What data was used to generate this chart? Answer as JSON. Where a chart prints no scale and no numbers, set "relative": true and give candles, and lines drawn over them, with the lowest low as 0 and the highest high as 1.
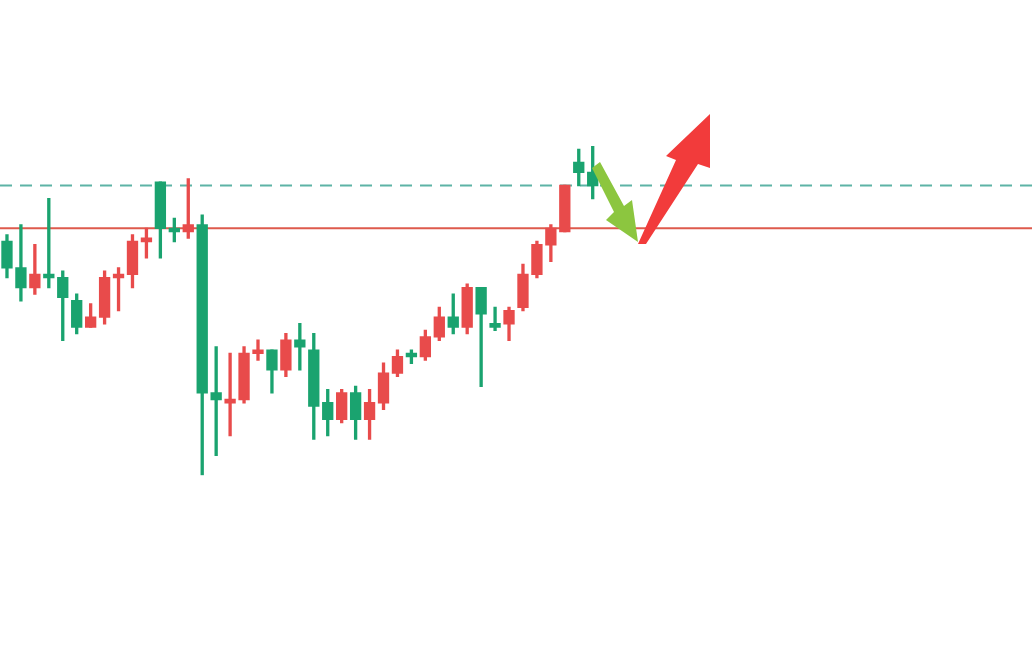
{
  "chart_data": {
    "type": "candlestick",
    "relative": true,
    "legend": false,
    "categories": [
      null,
      null,
      null,
      null,
      null,
      null,
      null,
      null,
      null,
      null,
      null,
      null,
      null,
      null,
      null,
      null,
      null,
      null,
      null,
      null,
      null,
      null,
      null,
      null,
      null,
      null,
      null,
      null,
      null,
      null,
      null,
      null,
      null,
      null,
      null,
      null,
      null,
      null,
      null,
      null,
      null,
      null,
      null,
      null,
      null,
      null,
      null,
      null,
      null,
      null,
      null,
      null,
      null,
      null,
      null,
      null,
      null,
      null,
      null,
      null,
      null,
      null,
      null,
      null,
      null,
      null,
      null,
      null,
      null,
      null,
      null,
      null,
      null,
      null
    ],
    "ohlc": [
      [
        0.71,
        0.73,
        0.6,
        0.63
      ],
      [
        0.63,
        0.76,
        0.53,
        0.57
      ],
      [
        0.57,
        0.7,
        0.55,
        0.61
      ],
      [
        0.61,
        0.84,
        0.57,
        0.6
      ],
      [
        0.6,
        0.62,
        0.41,
        0.54
      ],
      [
        0.53,
        0.55,
        0.43,
        0.45
      ],
      [
        0.45,
        0.52,
        0.45,
        0.48
      ],
      [
        0.48,
        0.62,
        0.46,
        0.6
      ],
      [
        0.6,
        0.63,
        0.5,
        0.61
      ],
      [
        0.61,
        0.73,
        0.57,
        0.71
      ],
      [
        0.71,
        0.75,
        0.66,
        0.72
      ],
      [
        0.89,
        0.89,
        0.66,
        0.75
      ],
      [
        0.75,
        0.78,
        0.71,
        0.74
      ],
      [
        0.74,
        0.9,
        0.72,
        0.76
      ],
      [
        0.76,
        0.79,
        0.0,
        0.25
      ],
      [
        0.25,
        0.39,
        0.06,
        0.23
      ],
      [
        0.22,
        0.37,
        0.12,
        0.23
      ],
      [
        0.23,
        0.39,
        0.22,
        0.37
      ],
      [
        0.37,
        0.41,
        0.35,
        0.38
      ],
      [
        0.38,
        0.38,
        0.25,
        0.32
      ],
      [
        0.32,
        0.43,
        0.3,
        0.41
      ],
      [
        0.41,
        0.46,
        0.32,
        0.39
      ],
      [
        0.38,
        0.43,
        0.11,
        0.21
      ],
      [
        0.22,
        0.26,
        0.12,
        0.17
      ],
      [
        0.17,
        0.26,
        0.16,
        0.25
      ],
      [
        0.25,
        0.27,
        0.11,
        0.17
      ],
      [
        0.17,
        0.26,
        0.11,
        0.22
      ],
      [
        0.22,
        0.34,
        0.2,
        0.31
      ],
      [
        0.31,
        0.38,
        0.3,
        0.36
      ],
      [
        0.37,
        0.38,
        0.34,
        0.36
      ],
      [
        0.36,
        0.44,
        0.35,
        0.42
      ],
      [
        0.42,
        0.51,
        0.41,
        0.48
      ],
      [
        0.48,
        0.55,
        0.43,
        0.45
      ],
      [
        0.45,
        0.58,
        0.43,
        0.57
      ],
      [
        0.57,
        0.57,
        0.27,
        0.49
      ],
      [
        0.46,
        0.51,
        0.44,
        0.45
      ],
      [
        0.46,
        0.51,
        0.41,
        0.5
      ],
      [
        0.51,
        0.64,
        0.5,
        0.61
      ],
      [
        0.61,
        0.71,
        0.6,
        0.7
      ],
      [
        0.7,
        0.76,
        0.65,
        0.75
      ],
      [
        0.74,
        0.88,
        0.74,
        0.88
      ],
      [
        0.95,
        0.99,
        0.88,
        0.92
      ],
      [
        0.92,
        1.0,
        0.84,
        0.88
      ],
      null,
      null,
      null,
      null,
      null,
      null,
      null,
      null,
      null,
      null,
      null,
      null,
      null,
      null,
      null,
      null,
      null,
      null,
      null,
      null,
      null,
      null,
      null,
      null,
      null,
      null,
      null,
      null,
      null,
      null,
      null
    ],
    "colors": [
      "#1aa36f",
      "#1aa36f",
      "#e84b4b",
      "#1aa36f",
      "#1aa36f",
      "#1aa36f",
      "#e84b4b",
      "#e84b4b",
      "#e84b4b",
      "#e84b4b",
      "#e84b4b",
      "#1aa36f",
      "#1aa36f",
      "#e84b4b",
      "#1aa36f",
      "#1aa36f",
      "#e84b4b",
      "#e84b4b",
      "#e84b4b",
      "#1aa36f",
      "#e84b4b",
      "#1aa36f",
      "#1aa36f",
      "#1aa36f",
      "#e84b4b",
      "#1aa36f",
      "#e84b4b",
      "#e84b4b",
      "#e84b4b",
      "#1aa36f",
      "#e84b4b",
      "#e84b4b",
      "#1aa36f",
      "#e84b4b",
      "#1aa36f",
      "#1aa36f",
      "#e84b4b",
      "#e84b4b",
      "#e84b4b",
      "#e84b4b",
      "#e84b4b",
      "#1aa36f",
      "#1aa36f",
      null,
      null,
      null,
      null,
      null,
      null,
      null,
      null,
      null,
      null,
      null,
      null,
      null,
      null,
      null,
      null,
      null,
      null,
      null,
      null,
      null,
      null,
      null,
      null,
      null,
      null,
      null,
      null,
      null,
      null,
      null
    ],
    "ref_lines": [
      {
        "axis": "y",
        "value": 0.88,
        "color": "#5db3a6",
        "line_style": "dashed"
      },
      {
        "axis": "y",
        "value": 0.75,
        "color": "#de5a4c",
        "line_style": "solid"
      }
    ]
  }
}
